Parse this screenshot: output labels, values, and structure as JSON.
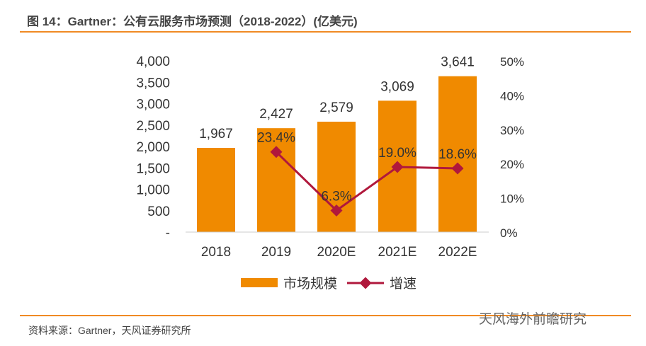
{
  "title": "图 14：Gartner：公有云服务市场预测（2018-2022）(亿美元)",
  "source": "资料来源：Gartner，天风证券研究所",
  "watermark": "天风海外前瞻研究",
  "chart_data": {
    "type": "bar+line",
    "categories": [
      "2018",
      "2019",
      "2020E",
      "2021E",
      "2022E"
    ],
    "series": [
      {
        "name": "市场规模",
        "type": "bar",
        "axis": "left",
        "color": "#f08a00",
        "values": [
          1967,
          2427,
          2579,
          3069,
          3641
        ],
        "labels": [
          "1,967",
          "2,427",
          "2,579",
          "3,069",
          "3,641"
        ]
      },
      {
        "name": "增速",
        "type": "line",
        "axis": "right",
        "color": "#b0183c",
        "values": [
          null,
          23.4,
          6.3,
          19.0,
          18.6
        ],
        "labels": [
          "",
          "23.4%",
          "6.3%",
          "19.0%",
          "18.6%"
        ]
      }
    ],
    "left_axis": {
      "range": [
        0,
        4000
      ],
      "ticks": [
        "-",
        "500",
        "1,000",
        "1,500",
        "2,000",
        "2,500",
        "3,000",
        "3,500",
        "4,000"
      ]
    },
    "right_axis": {
      "range": [
        0,
        50
      ],
      "ticks": [
        "0%",
        "10%",
        "20%",
        "30%",
        "40%",
        "50%"
      ]
    },
    "legend": {
      "position": "bottom",
      "entries": [
        "市场规模",
        "增速"
      ]
    },
    "grid": false
  }
}
